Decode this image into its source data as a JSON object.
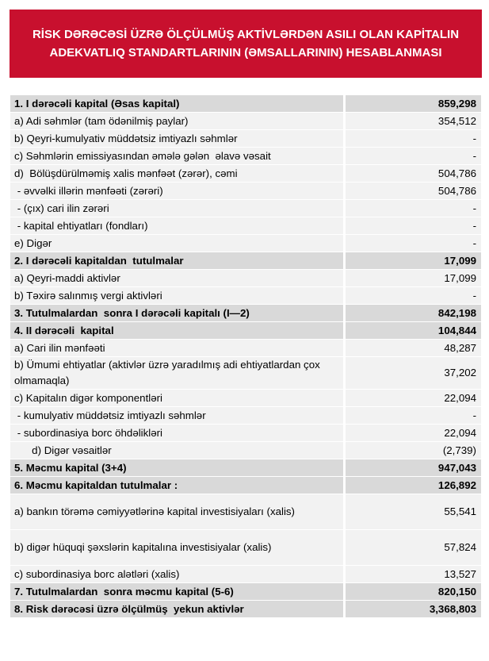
{
  "header": {
    "title": "RİSK DƏRƏCƏSİ ÜZRƏ ÖLÇÜLMÜŞ AKTİVLƏRDƏN ASILI OLAN KAPİTALIN ADEKVATLIQ STANDARTLARININ (ƏMSALLARININ) HESABLANMASI"
  },
  "table": {
    "rows": [
      {
        "label": "1. I dərəcəli kapital (Əsas kapital)",
        "value": "859,298",
        "bold": true
      },
      {
        "label": "a) Adi səhmlər (tam ödənilmiş paylar)",
        "value": "354,512",
        "bold": false
      },
      {
        "label": "b) Qeyri-kumulyativ müddətsiz imtiyazlı səhmlər",
        "value": "-",
        "bold": false
      },
      {
        "label": "c) Səhmlərin emissiyasından əmələ gələn  əlavə vəsait",
        "value": "-",
        "bold": false
      },
      {
        "label": "d)  Bölüşdürülməmiş xalis mənfəət (zərər), cəmi",
        "value": "504,786",
        "bold": false
      },
      {
        "label": " - əvvəlki illərin mənfəəti (zərəri)",
        "value": "504,786",
        "bold": false
      },
      {
        "label": " - (çıx) cari ilin zərəri",
        "value": "-",
        "bold": false
      },
      {
        "label": " - kapital ehtiyatları (fondları)",
        "value": "-",
        "bold": false
      },
      {
        "label": "e) Digər",
        "value": "-",
        "bold": false
      },
      {
        "label": "2. I dərəcəli kapitaldan  tutulmalar",
        "value": "17,099",
        "bold": true
      },
      {
        "label": "a) Qeyri-maddi aktivlər",
        "value": "17,099",
        "bold": false
      },
      {
        "label": "b) Təxirə salınmış vergi aktivləri",
        "value": "-",
        "bold": false
      },
      {
        "label": "3. Tutulmalardan  sonra I dərəcəli kapitalı (I—2)",
        "value": "842,198",
        "bold": true
      },
      {
        "label": "4. II dərəcəli  kapital",
        "value": "104,844",
        "bold": true
      },
      {
        "label": "a) Cari ilin mənfəəti",
        "value": "48,287",
        "bold": false
      },
      {
        "label": "b) Ümumi ehtiyatlar (aktivlər üzrə yaradılmış adi ehtiyatlardan çox olmamaqla)",
        "value": "37,202",
        "bold": false
      },
      {
        "label": "c) Kapitalın digər komponentləri",
        "value": "22,094",
        "bold": false
      },
      {
        "label": " - kumulyativ müddətsiz imtiyazlı səhmlər",
        "value": "-",
        "bold": false
      },
      {
        "label": " - subordinasiya borc öhdəlikləri",
        "value": "22,094",
        "bold": false
      },
      {
        "label": "      d) Digər vəsaitlər",
        "value": "(2,739)",
        "bold": false
      },
      {
        "label": "5. Məcmu kapital (3+4)",
        "value": "947,043",
        "bold": true
      },
      {
        "label": "6. Məcmu kapitaldan tutulmalar :",
        "value": "126,892",
        "bold": true
      },
      {
        "label": "a) bankın törəmə cəmiyyətlərinə kapital investisiyaları (xalis)",
        "value": "55,541",
        "bold": false
      },
      {
        "label": "b) digər hüquqi şəxslərin kapitalına investisiyalar (xalis)",
        "value": "57,824",
        "bold": false
      },
      {
        "label": "c) subordinasiya borc alətləri (xalis)",
        "value": "13,527",
        "bold": false
      },
      {
        "label": "7. Tutulmalardan  sonra məcmu kapital (5-6)",
        "value": "820,150",
        "bold": true
      },
      {
        "label": "8. Risk dərəcəsi üzrə ölçülmüş  yekun aktivlər",
        "value": "3,368,803",
        "bold": true
      }
    ]
  }
}
